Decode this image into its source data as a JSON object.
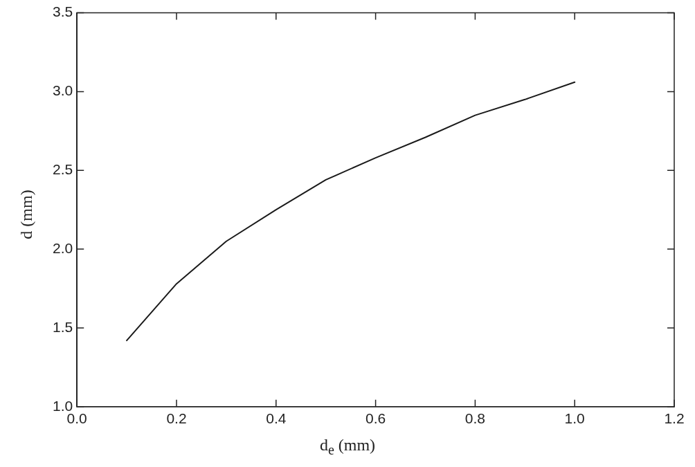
{
  "chart_data": {
    "type": "line",
    "xlabel": "d$_{e}$ (mm)",
    "ylabel": "d (mm)",
    "x": [
      0.1,
      0.2,
      0.3,
      0.4,
      0.5,
      0.6,
      0.7,
      0.8,
      0.9,
      1.0
    ],
    "series": [
      {
        "color": "#1a1a1a",
        "values": [
          1.42,
          1.78,
          2.05,
          2.25,
          2.44,
          2.58,
          2.71,
          2.85,
          2.95,
          3.06
        ]
      }
    ],
    "xlim": [
      0,
      1.2
    ],
    "xticks": [
      {
        "value": 0,
        "label": "0.0"
      },
      0.2,
      0.4,
      0.6,
      0.8,
      {
        "value": 1,
        "label": "1.0"
      },
      1.2
    ],
    "ylim": [
      1.0,
      3.5
    ],
    "yticks": [
      {
        "value": 1,
        "label": "1.0"
      },
      1.5,
      {
        "value": 2,
        "label": "2.0"
      },
      2.5,
      {
        "value": 3,
        "label": "3.0"
      },
      3.5
    ],
    "marker": "none",
    "line_style": "solid"
  }
}
